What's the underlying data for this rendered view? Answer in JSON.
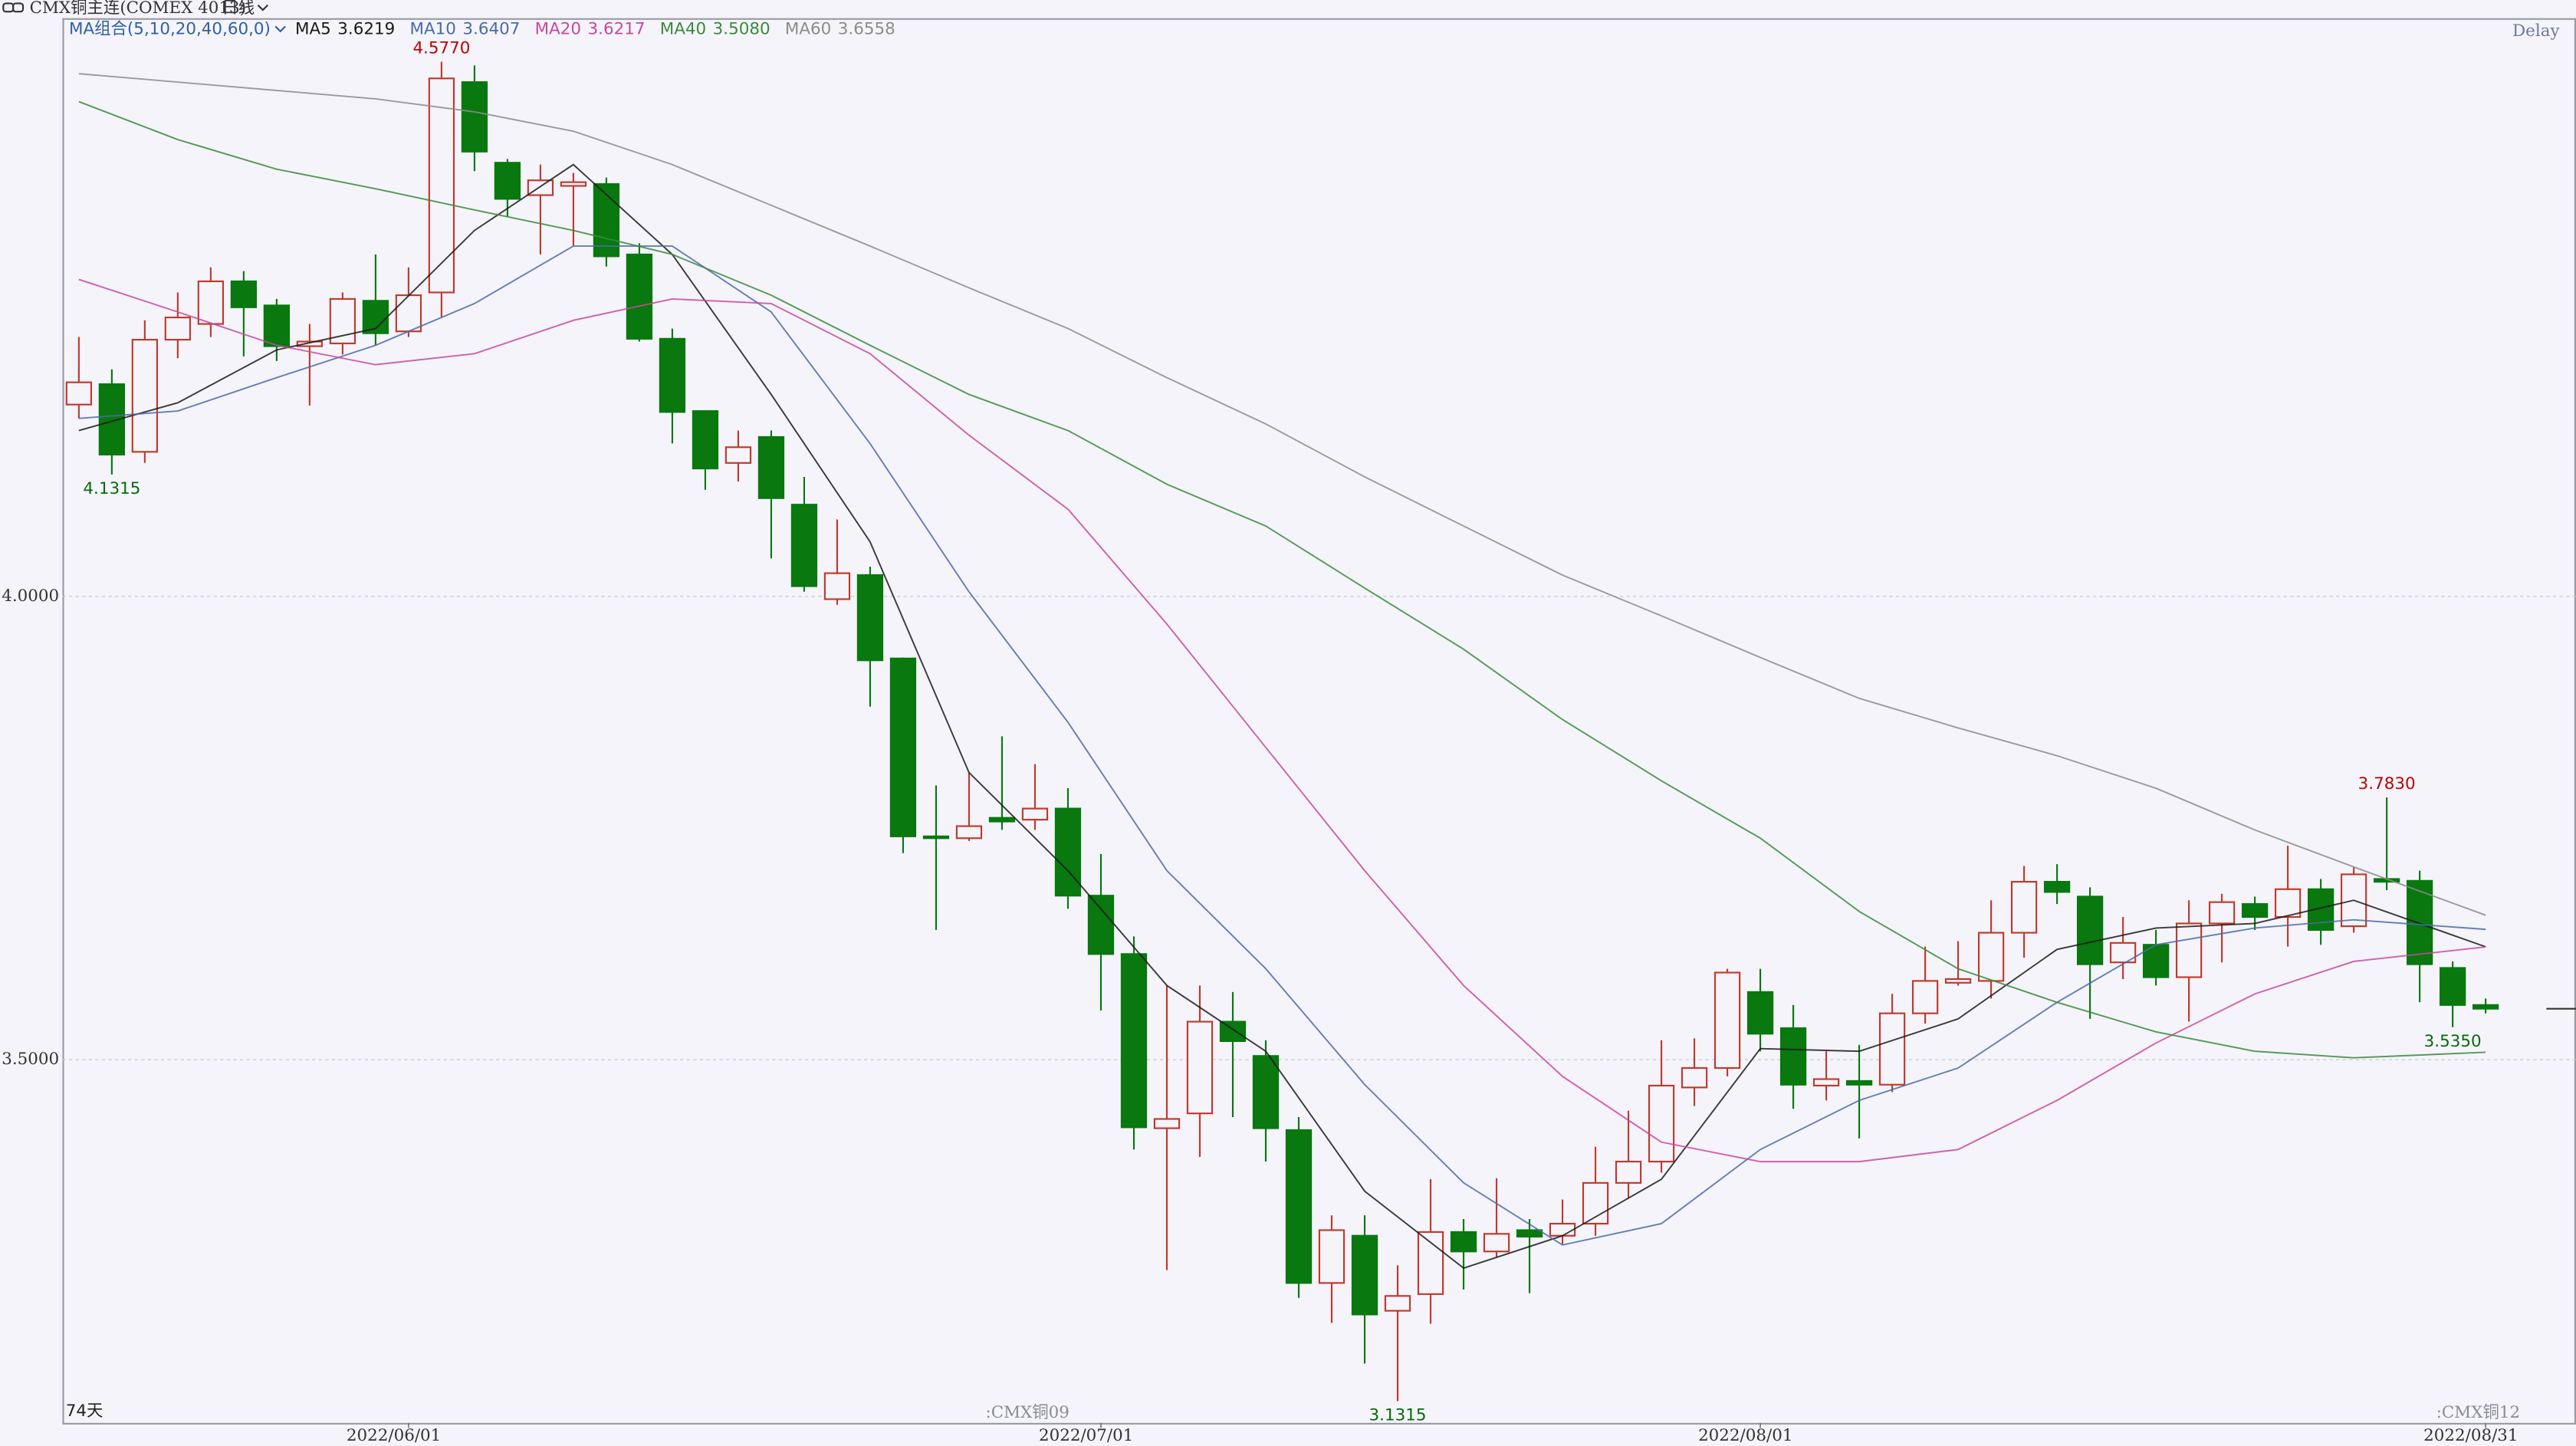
{
  "chart_data": {
    "type": "candlestick",
    "title": "CMX铜主连(COMEX 4013)",
    "period": "日线",
    "status": "Delay",
    "count_label": "74天",
    "categories": [
      null,
      null,
      null,
      null,
      null,
      null,
      null,
      null,
      null,
      null,
      "2022/06/01",
      null,
      null,
      null,
      null,
      null,
      null,
      null,
      null,
      null,
      null,
      null,
      null,
      null,
      null,
      null,
      null,
      null,
      null,
      null,
      null,
      "2022/07/01",
      null,
      null,
      null,
      null,
      null,
      null,
      null,
      null,
      null,
      null,
      null,
      null,
      null,
      null,
      null,
      null,
      null,
      null,
      null,
      "2022/08/01",
      null,
      null,
      null,
      null,
      null,
      null,
      null,
      null,
      null,
      null,
      null,
      null,
      null,
      null,
      null,
      null,
      null,
      null,
      null,
      null,
      null,
      "2022/08/31"
    ],
    "open": [
      4.207,
      4.229,
      4.156,
      4.277,
      4.294,
      4.34,
      4.314,
      4.27,
      4.273,
      4.319,
      4.286,
      4.328,
      4.555,
      4.468,
      4.433,
      4.443,
      4.445,
      4.369,
      4.278,
      4.2,
      4.144,
      4.172,
      4.099,
      3.997,
      4.023,
      3.933,
      3.741,
      3.739,
      3.761,
      3.759,
      3.771,
      3.677,
      3.614,
      3.426,
      3.442,
      3.541,
      3.504,
      3.424,
      3.259,
      3.31,
      3.229,
      3.247,
      3.314,
      3.293,
      3.316,
      3.31,
      3.323,
      3.367,
      3.39,
      3.47,
      3.491,
      3.573,
      3.534,
      3.472,
      3.477,
      3.473,
      3.55,
      3.583,
      3.585,
      3.637,
      3.692,
      3.676,
      3.605,
      3.624,
      3.589,
      3.647,
      3.668,
      3.654,
      3.684,
      3.644,
      3.695,
      3.693,
      3.599,
      3.559
    ],
    "high": [
      4.28,
      4.245,
      4.298,
      4.328,
      4.355,
      4.351,
      4.321,
      4.294,
      4.328,
      4.369,
      4.355,
      4.577,
      4.573,
      4.472,
      4.466,
      4.457,
      4.452,
      4.381,
      4.289,
      4.2,
      4.179,
      4.179,
      4.129,
      4.083,
      4.032,
      3.934,
      3.796,
      3.81,
      3.849,
      3.819,
      3.793,
      3.722,
      3.633,
      3.58,
      3.58,
      3.573,
      3.521,
      3.438,
      3.332,
      3.332,
      3.278,
      3.371,
      3.328,
      3.372,
      3.328,
      3.349,
      3.406,
      3.445,
      3.521,
      3.523,
      3.598,
      3.598,
      3.559,
      3.509,
      3.516,
      3.571,
      3.622,
      3.628,
      3.672,
      3.709,
      3.711,
      3.686,
      3.654,
      3.64,
      3.672,
      3.679,
      3.676,
      3.731,
      3.695,
      3.708,
      3.783,
      3.704,
      3.606,
      3.566
    ],
    "low": [
      4.192,
      4.1315,
      4.144,
      4.257,
      4.28,
      4.259,
      4.254,
      4.206,
      4.261,
      4.271,
      4.28,
      4.301,
      4.459,
      4.41,
      4.369,
      4.378,
      4.356,
      4.275,
      4.165,
      4.115,
      4.124,
      4.041,
      4.005,
      3.991,
      3.881,
      3.723,
      3.64,
      3.736,
      3.748,
      3.748,
      3.663,
      3.553,
      3.403,
      3.273,
      3.395,
      3.438,
      3.39,
      3.243,
      3.216,
      3.172,
      3.1315,
      3.215,
      3.252,
      3.287,
      3.248,
      3.301,
      3.31,
      3.351,
      3.378,
      3.45,
      3.482,
      3.509,
      3.447,
      3.456,
      3.415,
      3.465,
      3.539,
      3.58,
      3.566,
      3.61,
      3.668,
      3.544,
      3.587,
      3.58,
      3.541,
      3.605,
      3.64,
      3.622,
      3.624,
      3.637,
      3.683,
      3.562,
      3.535,
      3.55
    ],
    "close": [
      4.231,
      4.153,
      4.277,
      4.301,
      4.34,
      4.312,
      4.27,
      4.275,
      4.321,
      4.284,
      4.325,
      4.559,
      4.48,
      4.429,
      4.449,
      4.447,
      4.367,
      4.278,
      4.199,
      4.138,
      4.161,
      4.106,
      4.011,
      4.025,
      3.931,
      3.741,
      3.739,
      3.752,
      3.757,
      3.771,
      3.677,
      3.614,
      3.427,
      3.436,
      3.541,
      3.52,
      3.426,
      3.259,
      3.316,
      3.225,
      3.245,
      3.314,
      3.293,
      3.312,
      3.309,
      3.323,
      3.367,
      3.39,
      3.472,
      3.491,
      3.594,
      3.528,
      3.473,
      3.479,
      3.473,
      3.55,
      3.585,
      3.587,
      3.637,
      3.692,
      3.681,
      3.603,
      3.626,
      3.589,
      3.647,
      3.67,
      3.654,
      3.684,
      3.64,
      3.7,
      3.692,
      3.603,
      3.559,
      3.555
    ],
    "high_labels": {
      "11": "4.5770",
      "70": "3.7830"
    },
    "low_labels": {
      "1": "4.1315",
      "40": "3.1315",
      "72": "3.5350"
    },
    "contract_labels": {
      "28": ":CMX铜09",
      "72": ":CMX铜12"
    },
    "up_color": "#c0392b",
    "down_color": "#08780f",
    "high_label_color": "#c00000",
    "low_label_color": "#0a6a0a",
    "ylim": [
      3.108,
      4.624
    ],
    "yticks": [
      {
        "value": 4,
        "label": "4.0000"
      },
      {
        "value": 3.5,
        "label": "3.5000"
      }
    ],
    "grid": true,
    "ma": {
      "title": "MA组合(5,10,20,40,60,0)",
      "x": [
        0,
        3,
        6,
        9,
        12,
        15,
        18,
        21,
        24,
        27,
        30,
        33,
        36,
        39,
        42,
        45,
        48,
        51,
        54,
        57,
        60,
        63,
        66,
        69,
        73
      ],
      "series": [
        {
          "name": "MA5",
          "color": "#1a1a1a",
          "legend_value": "3.6219",
          "values": [
            4.179,
            4.209,
            4.266,
            4.289,
            4.395,
            4.466,
            4.369,
            4.218,
            4.059,
            3.81,
            3.704,
            3.58,
            3.509,
            3.358,
            3.275,
            3.31,
            3.371,
            3.512,
            3.509,
            3.544,
            3.619,
            3.642,
            3.647,
            3.672,
            3.6219
          ]
        },
        {
          "name": "MA10",
          "color": "#4b6aa8",
          "legend_value": "3.6407",
          "values": [
            4.192,
            4.2,
            4.236,
            4.271,
            4.316,
            4.378,
            4.378,
            4.307,
            4.165,
            4.005,
            3.864,
            3.704,
            3.598,
            3.473,
            3.367,
            3.3,
            3.323,
            3.403,
            3.456,
            3.491,
            3.562,
            3.624,
            3.642,
            3.651,
            3.6407
          ]
        },
        {
          "name": "MA20",
          "color": "#c8489e",
          "legend_value": "3.6217",
          "values": [
            4.342,
            4.307,
            4.271,
            4.25,
            4.262,
            4.298,
            4.321,
            4.316,
            4.262,
            4.174,
            4.094,
            3.97,
            3.837,
            3.704,
            3.58,
            3.482,
            3.411,
            3.39,
            3.39,
            3.403,
            3.456,
            3.518,
            3.571,
            3.606,
            3.6217
          ]
        },
        {
          "name": "MA40",
          "color": "#3a8a3a",
          "legend_value": "3.5080",
          "values": [
            4.534,
            4.493,
            4.461,
            4.44,
            4.417,
            4.395,
            4.369,
            4.325,
            4.271,
            4.218,
            4.179,
            4.121,
            4.076,
            4.009,
            3.943,
            3.867,
            3.801,
            3.739,
            3.66,
            3.598,
            3.562,
            3.53,
            3.509,
            3.502,
            3.508
          ]
        },
        {
          "name": "MA60",
          "color": "#8c8c8c",
          "legend_value": "3.6558",
          "values": [
            4.564,
            4.555,
            4.546,
            4.537,
            4.523,
            4.502,
            4.466,
            4.422,
            4.378,
            4.333,
            4.289,
            4.236,
            4.186,
            4.129,
            4.076,
            4.023,
            3.979,
            3.934,
            3.89,
            3.858,
            3.828,
            3.793,
            3.748,
            3.708,
            3.6558
          ]
        }
      ]
    }
  }
}
